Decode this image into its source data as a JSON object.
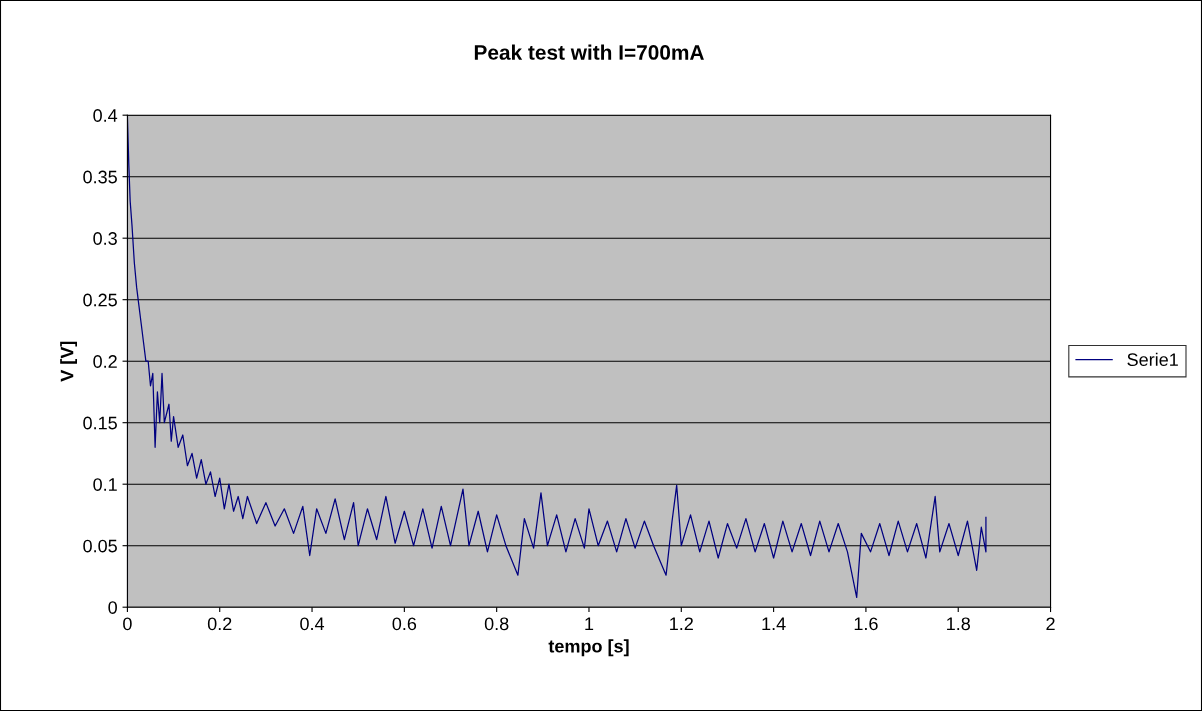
{
  "chart_data": {
    "type": "line",
    "title": "Peak test with I=700mA",
    "xlabel": "tempo [s]",
    "ylabel": "V [V]",
    "xlim": [
      0,
      2
    ],
    "xticks": [
      0,
      0.2,
      0.4,
      0.6,
      0.8,
      1,
      1.2,
      1.4,
      1.6,
      1.8,
      2
    ],
    "ylim": [
      0,
      0.4
    ],
    "yticks": [
      0,
      0.05,
      0.1,
      0.15,
      0.2,
      0.25,
      0.3,
      0.35,
      0.4
    ],
    "grid": "y",
    "legend": "right",
    "marker": "none",
    "line_style": "solid",
    "series": [
      {
        "name": "Serie1",
        "color": "#000080",
        "x": [
          0,
          0,
          0.003,
          0.006,
          0.01,
          0.015,
          0.02,
          0.025,
          0.03,
          0.035,
          0.04,
          0.045,
          0.05,
          0.055,
          0.06,
          0.065,
          0.07,
          0.075,
          0.08,
          0.09,
          0.095,
          0.1,
          0.11,
          0.12,
          0.13,
          0.14,
          0.15,
          0.16,
          0.17,
          0.18,
          0.19,
          0.2,
          0.21,
          0.22,
          0.23,
          0.24,
          0.25,
          0.26,
          0.28,
          0.3,
          0.32,
          0.34,
          0.36,
          0.38,
          0.395,
          0.41,
          0.43,
          0.45,
          0.47,
          0.49,
          0.5,
          0.52,
          0.54,
          0.56,
          0.58,
          0.6,
          0.62,
          0.64,
          0.66,
          0.68,
          0.7,
          0.727,
          0.74,
          0.76,
          0.78,
          0.8,
          0.82,
          0.846,
          0.86,
          0.88,
          0.896,
          0.91,
          0.93,
          0.95,
          0.97,
          0.99,
          1.0,
          1.02,
          1.04,
          1.06,
          1.08,
          1.1,
          1.12,
          1.14,
          1.167,
          1.18,
          1.19,
          1.2,
          1.22,
          1.24,
          1.26,
          1.28,
          1.3,
          1.32,
          1.34,
          1.36,
          1.38,
          1.4,
          1.42,
          1.44,
          1.46,
          1.48,
          1.5,
          1.52,
          1.54,
          1.56,
          1.58,
          1.59,
          1.61,
          1.63,
          1.65,
          1.67,
          1.69,
          1.71,
          1.73,
          1.75,
          1.76,
          1.78,
          1.8,
          1.82,
          1.84,
          1.85,
          1.86,
          1.86
        ],
        "values": [
          0,
          0.4,
          0.36,
          0.33,
          0.31,
          0.28,
          0.26,
          0.245,
          0.23,
          0.215,
          0.2,
          0.2,
          0.18,
          0.19,
          0.13,
          0.175,
          0.15,
          0.19,
          0.15,
          0.165,
          0.135,
          0.155,
          0.13,
          0.14,
          0.115,
          0.125,
          0.105,
          0.12,
          0.1,
          0.11,
          0.09,
          0.105,
          0.08,
          0.1,
          0.078,
          0.09,
          0.072,
          0.09,
          0.068,
          0.085,
          0.066,
          0.08,
          0.06,
          0.082,
          0.042,
          0.08,
          0.06,
          0.088,
          0.055,
          0.085,
          0.05,
          0.08,
          0.055,
          0.09,
          0.052,
          0.078,
          0.05,
          0.08,
          0.048,
          0.082,
          0.05,
          0.096,
          0.05,
          0.078,
          0.045,
          0.075,
          0.05,
          0.026,
          0.072,
          0.048,
          0.093,
          0.05,
          0.075,
          0.045,
          0.072,
          0.048,
          0.08,
          0.05,
          0.07,
          0.045,
          0.072,
          0.048,
          0.07,
          0.05,
          0.026,
          0.07,
          0.099,
          0.05,
          0.075,
          0.045,
          0.07,
          0.04,
          0.068,
          0.048,
          0.072,
          0.045,
          0.068,
          0.04,
          0.07,
          0.045,
          0.068,
          0.042,
          0.07,
          0.045,
          0.068,
          0.045,
          0.008,
          0.06,
          0.045,
          0.068,
          0.042,
          0.07,
          0.045,
          0.068,
          0.04,
          0.09,
          0.045,
          0.068,
          0.042,
          0.07,
          0.03,
          0.065,
          0.045,
          0.073
        ]
      }
    ]
  }
}
